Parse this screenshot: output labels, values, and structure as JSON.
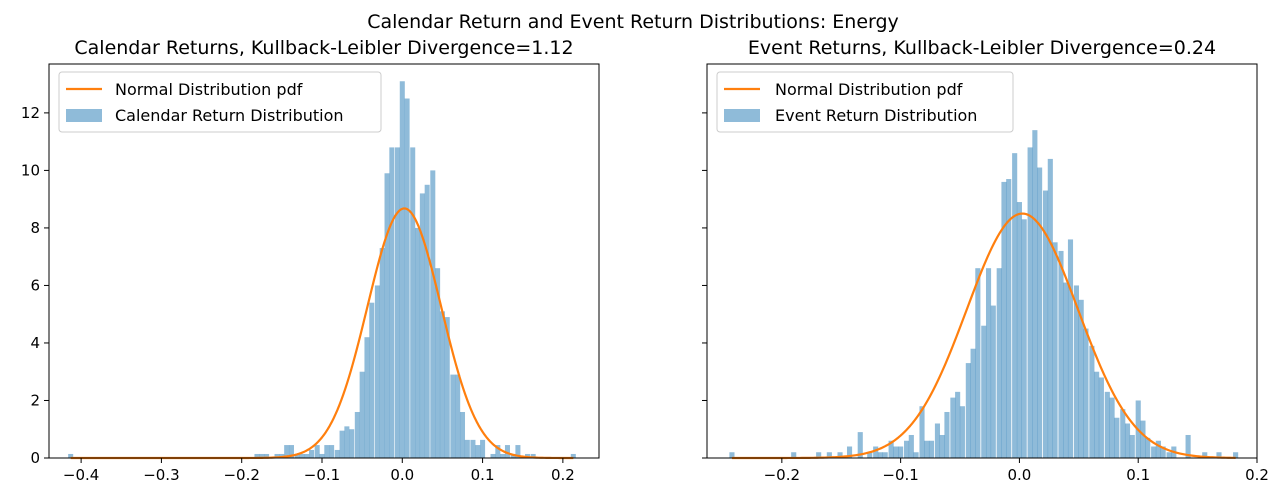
{
  "figure": {
    "suptitle": "Calendar Return and Event Return Distributions: Energy",
    "colors": {
      "histogram": "#1f77b4",
      "histogram_alpha": 0.5,
      "pdf_line": "#ff7f0e",
      "axes": "#000000"
    }
  },
  "chart_data": [
    {
      "type": "histogram",
      "title": "Calendar Returns, Kullback-Leibler Divergence=1.12",
      "xlabel": "",
      "ylabel": "",
      "xlim": [
        -0.44,
        0.245
      ],
      "ylim": [
        0,
        13.7
      ],
      "xticks": [
        -0.4,
        -0.3,
        -0.2,
        -0.1,
        0.0,
        0.1,
        0.2
      ],
      "xtick_labels": [
        "−0.4",
        "−0.3",
        "−0.2",
        "−0.1",
        "0.0",
        "0.1",
        "0.2"
      ],
      "yticks": [
        0,
        2,
        4,
        6,
        8,
        10,
        12
      ],
      "ytick_labels": [
        "0",
        "2",
        "4",
        "6",
        "8",
        "10",
        "12"
      ],
      "grid": false,
      "legend": {
        "placement": "top-left",
        "entries": [
          {
            "label": "Normal Distribution pdf",
            "kind": "line"
          },
          {
            "label": "Calendar Return Distribution",
            "kind": "patch"
          }
        ]
      },
      "histogram": {
        "name": "Calendar Return Distribution",
        "bin_width": 0.00625,
        "bins": [
          [
            -0.413,
            0.14
          ],
          [
            -0.181,
            0.14
          ],
          [
            -0.175,
            0.14
          ],
          [
            -0.169,
            0.14
          ],
          [
            -0.156,
            0.14
          ],
          [
            -0.15,
            0.14
          ],
          [
            -0.144,
            0.45
          ],
          [
            -0.138,
            0.45
          ],
          [
            -0.131,
            0.14
          ],
          [
            -0.125,
            0.14
          ],
          [
            -0.119,
            0.14
          ],
          [
            -0.113,
            0.28
          ],
          [
            -0.106,
            0.45
          ],
          [
            -0.1,
            0.14
          ],
          [
            -0.094,
            0.45
          ],
          [
            -0.088,
            0.45
          ],
          [
            -0.081,
            0.28
          ],
          [
            -0.075,
            0.95
          ],
          [
            -0.069,
            1.1
          ],
          [
            -0.063,
            1.0
          ],
          [
            -0.056,
            1.6
          ],
          [
            -0.05,
            3.0
          ],
          [
            -0.044,
            4.2
          ],
          [
            -0.038,
            5.4
          ],
          [
            -0.031,
            6.0
          ],
          [
            -0.025,
            7.3
          ],
          [
            -0.019,
            9.9
          ],
          [
            -0.013,
            10.8
          ],
          [
            -0.006,
            10.8
          ],
          [
            0.0,
            13.1
          ],
          [
            0.006,
            12.5
          ],
          [
            0.013,
            10.8
          ],
          [
            0.019,
            8.0
          ],
          [
            0.025,
            9.2
          ],
          [
            0.031,
            9.5
          ],
          [
            0.038,
            10.0
          ],
          [
            0.044,
            6.6
          ],
          [
            0.05,
            5.1
          ],
          [
            0.056,
            4.9
          ],
          [
            0.063,
            2.9
          ],
          [
            0.069,
            2.9
          ],
          [
            0.075,
            1.6
          ],
          [
            0.081,
            0.63
          ],
          [
            0.088,
            0.63
          ],
          [
            0.094,
            0.45
          ],
          [
            0.1,
            0.63
          ],
          [
            0.113,
            0.14
          ],
          [
            0.119,
            0.45
          ],
          [
            0.125,
            0.14
          ],
          [
            0.131,
            0.45
          ],
          [
            0.138,
            0.14
          ],
          [
            0.144,
            0.45
          ],
          [
            0.156,
            0.14
          ],
          [
            0.163,
            0.14
          ],
          [
            0.213,
            0.14
          ]
        ]
      },
      "pdf": {
        "name": "Normal Distribution pdf",
        "mean": 0.0025,
        "std": 0.0459,
        "peak": 8.68,
        "x_range": [
          -0.413,
          0.213
        ]
      }
    },
    {
      "type": "histogram",
      "title": "Event Returns, Kullback-Leibler Divergence=0.24",
      "xlabel": "",
      "ylabel": "",
      "xlim": [
        -0.263,
        0.2
      ],
      "ylim": [
        0,
        13.7
      ],
      "xticks": [
        -0.2,
        -0.1,
        0.0,
        0.1,
        0.2
      ],
      "xtick_labels": [
        "−0.2",
        "−0.1",
        "0.0",
        "0.1",
        "0.2"
      ],
      "yticks": [
        0,
        2,
        4,
        6,
        8,
        10,
        12
      ],
      "ytick_labels": [
        "",
        "",
        "",
        "",
        "",
        "",
        ""
      ],
      "grid": false,
      "legend": {
        "placement": "top-left",
        "entries": [
          {
            "label": "Normal Distribution pdf",
            "kind": "line"
          },
          {
            "label": "Event Return Distribution",
            "kind": "patch"
          }
        ]
      },
      "histogram": {
        "name": "Event Return Distribution",
        "bin_width": 0.0043,
        "bins": [
          [
            -0.242,
            0.2
          ],
          [
            -0.19,
            0.2
          ],
          [
            -0.169,
            0.2
          ],
          [
            -0.16,
            0.2
          ],
          [
            -0.151,
            0.2
          ],
          [
            -0.143,
            0.4
          ],
          [
            -0.134,
            0.9
          ],
          [
            -0.126,
            0.2
          ],
          [
            -0.121,
            0.4
          ],
          [
            -0.117,
            0.2
          ],
          [
            -0.113,
            0.2
          ],
          [
            -0.108,
            0.6
          ],
          [
            -0.104,
            0.4
          ],
          [
            -0.1,
            0.4
          ],
          [
            -0.095,
            0.6
          ],
          [
            -0.091,
            0.8
          ],
          [
            -0.087,
            0.2
          ],
          [
            -0.082,
            1.8
          ],
          [
            -0.078,
            0.6
          ],
          [
            -0.074,
            0.6
          ],
          [
            -0.069,
            1.2
          ],
          [
            -0.065,
            0.8
          ],
          [
            -0.061,
            1.6
          ],
          [
            -0.056,
            2.1
          ],
          [
            -0.052,
            2.3
          ],
          [
            -0.048,
            1.8
          ],
          [
            -0.043,
            3.3
          ],
          [
            -0.039,
            3.8
          ],
          [
            -0.035,
            6.6
          ],
          [
            -0.03,
            4.6
          ],
          [
            -0.026,
            6.6
          ],
          [
            -0.022,
            5.3
          ],
          [
            -0.017,
            6.6
          ],
          [
            -0.013,
            9.6
          ],
          [
            -0.009,
            9.7
          ],
          [
            -0.004,
            10.6
          ],
          [
            0.0,
            8.9
          ],
          [
            0.004,
            8.3
          ],
          [
            0.009,
            10.8
          ],
          [
            0.013,
            11.4
          ],
          [
            0.017,
            10.1
          ],
          [
            0.022,
            9.3
          ],
          [
            0.026,
            10.4
          ],
          [
            0.03,
            7.5
          ],
          [
            0.035,
            7.2
          ],
          [
            0.039,
            6.1
          ],
          [
            0.043,
            7.6
          ],
          [
            0.048,
            6.0
          ],
          [
            0.052,
            5.5
          ],
          [
            0.056,
            4.5
          ],
          [
            0.061,
            3.9
          ],
          [
            0.065,
            3.0
          ],
          [
            0.069,
            2.8
          ],
          [
            0.074,
            2.3
          ],
          [
            0.078,
            2.1
          ],
          [
            0.082,
            1.4
          ],
          [
            0.087,
            1.7
          ],
          [
            0.091,
            1.2
          ],
          [
            0.095,
            0.8
          ],
          [
            0.1,
            2.0
          ],
          [
            0.104,
            1.3
          ],
          [
            0.108,
            0.7
          ],
          [
            0.113,
            0.4
          ],
          [
            0.117,
            0.6
          ],
          [
            0.121,
            0.4
          ],
          [
            0.126,
            0.2
          ],
          [
            0.13,
            0.4
          ],
          [
            0.142,
            0.8
          ],
          [
            0.156,
            0.2
          ],
          [
            0.168,
            0.2
          ],
          [
            0.182,
            0.2
          ]
        ]
      },
      "pdf": {
        "name": "Normal Distribution pdf",
        "mean": 0.0025,
        "std": 0.0469,
        "peak": 8.5,
        "x_range": [
          -0.242,
          0.182
        ]
      }
    }
  ]
}
